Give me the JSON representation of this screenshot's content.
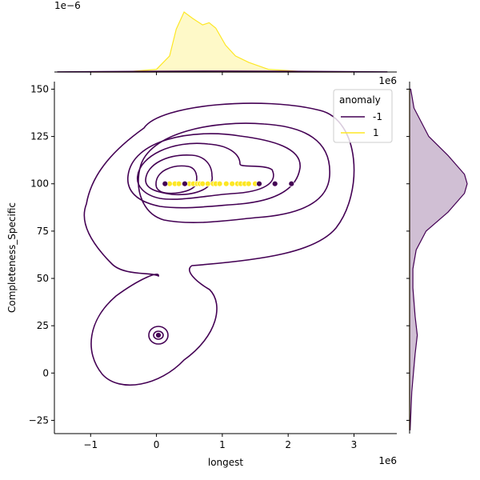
{
  "chart_data": {
    "type": "scatter",
    "title": "",
    "xlabel": "longest",
    "ylabel": "Completeness_Specific",
    "x_exponent_label": "1e6",
    "y_exponent_label": "",
    "xlim": [
      -1550000,
      3650000
    ],
    "ylim": [
      -32,
      154
    ],
    "x_ticks": [
      -1000000,
      0,
      1000000,
      2000000,
      3000000
    ],
    "x_tick_labels": [
      "−1",
      "0",
      "1",
      "2",
      "3"
    ],
    "y_ticks": [
      -25,
      0,
      25,
      50,
      75,
      100,
      125,
      150
    ],
    "y_tick_labels": [
      "−25",
      "0",
      "25",
      "50",
      "75",
      "100",
      "125",
      "150"
    ],
    "grid": false,
    "legend": {
      "title": "anomaly",
      "placement": "top-right",
      "entries": [
        {
          "label": "-1",
          "color": "#440154"
        },
        {
          "label": "1",
          "color": "#fde725"
        }
      ]
    },
    "series": [
      {
        "name": "1",
        "color": "#fde725",
        "points": [
          [
            200000,
            100
          ],
          [
            280000,
            100
          ],
          [
            340000,
            100
          ],
          [
            500000,
            100
          ],
          [
            560000,
            100
          ],
          [
            620000,
            100
          ],
          [
            660000,
            100
          ],
          [
            700000,
            100
          ],
          [
            780000,
            100
          ],
          [
            860000,
            100
          ],
          [
            900000,
            100
          ],
          [
            960000,
            100
          ],
          [
            1060000,
            100
          ],
          [
            1150000,
            100
          ],
          [
            1230000,
            100
          ],
          [
            1280000,
            100
          ],
          [
            1340000,
            100
          ],
          [
            1400000,
            100
          ],
          [
            1500000,
            100
          ],
          [
            420000,
            100
          ]
        ]
      },
      {
        "name": "-1",
        "color": "#440154",
        "points": [
          [
            30000,
            20
          ],
          [
            130000,
            100
          ],
          [
            430000,
            100
          ],
          [
            1560000,
            100
          ],
          [
            1800000,
            100
          ],
          [
            2050000,
            100
          ]
        ]
      }
    ],
    "kde_contours": {
      "color": "#440154",
      "note": "2D density contours of anomaly -1"
    },
    "marginal_top": {
      "exponent_label": "1e−6",
      "series": [
        {
          "name": "1",
          "color": "#fde725",
          "x": [
            -1000000,
            -400000,
            0,
            200000,
            300000,
            420000,
            550000,
            700000,
            800000,
            900000,
            1050000,
            1200000,
            1400000,
            1700000,
            2200000,
            3000000
          ],
          "density": [
            0,
            0.01,
            0.05,
            0.3,
            0.8,
            1.12,
            1.0,
            0.88,
            0.92,
            0.82,
            0.5,
            0.3,
            0.18,
            0.05,
            0.01,
            0
          ]
        },
        {
          "name": "-1",
          "color": "#440154",
          "x": [
            -1500000,
            0,
            1000000,
            2000000,
            3500000
          ],
          "density": [
            0.005,
            0.015,
            0.02,
            0.015,
            0.005
          ]
        }
      ]
    },
    "marginal_right": {
      "series": [
        {
          "name": "-1",
          "color": "#440154",
          "y": [
            -30,
            -10,
            10,
            20,
            30,
            45,
            55,
            65,
            75,
            85,
            95,
            100,
            105,
            115,
            125,
            140,
            150
          ],
          "density": [
            0.01,
            0.04,
            0.1,
            0.14,
            0.1,
            0.06,
            0.06,
            0.12,
            0.3,
            0.7,
            1.0,
            1.05,
            1.0,
            0.7,
            0.35,
            0.08,
            0.02
          ]
        },
        {
          "name": "1",
          "color": "#fde725",
          "y": [
            -30,
            99.9,
            100,
            100.1,
            150
          ],
          "density": [
            0,
            0,
            0,
            0,
            0
          ]
        }
      ]
    }
  }
}
